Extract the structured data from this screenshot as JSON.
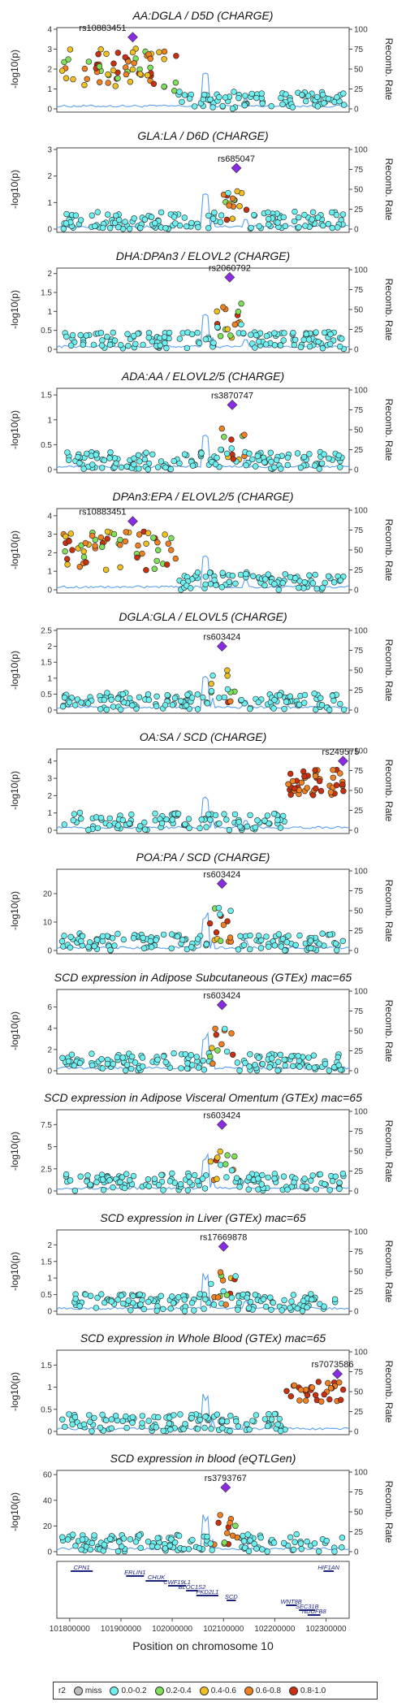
{
  "colors": {
    "miss": "#bdbdbd",
    "r2_0_0.2": "#6ff0f0",
    "r2_0.2_0.4": "#7fe05a",
    "r2_0.4_0.6": "#f0c020",
    "r2_0.6_0.8": "#f08020",
    "r2_0.8_1.0": "#c83010",
    "lead": "#8a2be2",
    "recomb": "#5aa0f0"
  },
  "common": {
    "ylabel": "-log10(p)",
    "y2label": "Recomb. Rate",
    "y2ticks": [
      "0",
      "25",
      "50",
      "75",
      "100"
    ],
    "xlabel": "Position on chromosome 10",
    "xticks": [
      "101800000",
      "101900000",
      "102000000",
      "102100000",
      "102200000",
      "102300000"
    ]
  },
  "legend": {
    "title": "r2",
    "items": [
      {
        "label": "miss",
        "color_key": "miss"
      },
      {
        "label": "0.0-0.2",
        "color_key": "r2_0_0.2"
      },
      {
        "label": "0.2-0.4",
        "color_key": "r2_0.2_0.4"
      },
      {
        "label": "0.4-0.6",
        "color_key": "r2_0.4_0.6"
      },
      {
        "label": "0.6-0.8",
        "color_key": "r2_0.6_0.8"
      },
      {
        "label": "0.8-1.0",
        "color_key": "r2_0.8_1.0"
      }
    ]
  },
  "genes": [
    {
      "name": "CPN1",
      "start": 101802000,
      "end": 101845000,
      "row": 0
    },
    {
      "name": "ERLIN1",
      "start": 101910000,
      "end": 101945000,
      "row": 1
    },
    {
      "name": "CHUK",
      "start": 101948000,
      "end": 101990000,
      "row": 2
    },
    {
      "name": "CWF19L1",
      "start": 101992000,
      "end": 102027000,
      "row": 3
    },
    {
      "name": "BLOC1S2",
      "start": 102027000,
      "end": 102050000,
      "row": 4
    },
    {
      "name": "PKD2L1",
      "start": 102047000,
      "end": 102090000,
      "row": 5
    },
    {
      "name": "SCD",
      "start": 102106000,
      "end": 102124000,
      "row": 6
    },
    {
      "name": "WNT8B",
      "start": 102222000,
      "end": 102242000,
      "row": 7
    },
    {
      "name": "SEC31B",
      "start": 102247000,
      "end": 102279000,
      "row": 8
    },
    {
      "name": "NDUFB8",
      "start": 102264000,
      "end": 102289000,
      "row": 9
    },
    {
      "name": "HIF1AN",
      "start": 102295000,
      "end": 102315000,
      "row": 0
    }
  ],
  "chart_data": [
    {
      "type": "scatter",
      "title": "AA:DGLA / D5D (CHARGE)",
      "ylim": [
        0,
        4
      ],
      "yticks": [
        0,
        1,
        2,
        3,
        4
      ],
      "lead": {
        "snp": "rs10883451",
        "pos": 101923000,
        "logp": 3.6
      },
      "profile": "left_high"
    },
    {
      "type": "scatter",
      "title": "GLA:LA / D6D (CHARGE)",
      "ylim": [
        0,
        3
      ],
      "yticks": [
        0,
        1,
        2,
        3
      ],
      "lead": {
        "snp": "rs685047",
        "pos": 102125000,
        "logp": 2.3
      },
      "profile": "mid_peak"
    },
    {
      "type": "scatter",
      "title": "DHA:DPAn3 / ELOVL2 (CHARGE)",
      "ylim": [
        0,
        2.1
      ],
      "yticks": [
        0,
        0.5,
        1.0,
        1.5,
        2.0
      ],
      "lead": {
        "snp": "rs2060792",
        "pos": 102112000,
        "logp": 1.9
      },
      "profile": "mid_peak"
    },
    {
      "type": "scatter",
      "title": "ADA:AA / ELOVL2/5 (CHARGE)",
      "ylim": [
        0,
        1.6
      ],
      "yticks": [
        0,
        0.5,
        1.0,
        1.5
      ],
      "lead": {
        "snp": "rs3870747",
        "pos": 102117000,
        "logp": 1.3
      },
      "profile": "mid_peak"
    },
    {
      "type": "scatter",
      "title": "DPAn3:EPA / ELOVL2/5 (CHARGE)",
      "ylim": [
        0,
        4.3
      ],
      "yticks": [
        0,
        1,
        2,
        3,
        4
      ],
      "lead": {
        "snp": "rs10883451",
        "pos": 101923000,
        "logp": 3.7
      },
      "profile": "left_high"
    },
    {
      "type": "scatter",
      "title": "DGLA:GLA / ELOVL5 (CHARGE)",
      "ylim": [
        0,
        2.5
      ],
      "yticks": [
        0,
        0.5,
        1.0,
        1.5,
        2.0,
        2.5
      ],
      "lead": {
        "snp": "rs603424",
        "pos": 102097000,
        "logp": 2.0
      },
      "profile": "mid_peak"
    },
    {
      "type": "scatter",
      "title": "OA:SA / SCD (CHARGE)",
      "ylim": [
        0,
        4.6
      ],
      "yticks": [
        0,
        1,
        2,
        3,
        4
      ],
      "lead": {
        "snp": "rs249575",
        "pos": 102333000,
        "logp": 4.0
      },
      "profile": "right_high"
    },
    {
      "type": "scatter",
      "title": "POA:PA / SCD (CHARGE)",
      "ylim": [
        0,
        28
      ],
      "yticks": [
        0,
        10,
        20
      ],
      "lead": {
        "snp": "rs603424",
        "pos": 102097000,
        "logp": 23.5
      },
      "profile": "mid_peak"
    },
    {
      "type": "scatter",
      "title": "SCD expression in Adipose Subcutaneous (GTEx) mac=65",
      "ylim": [
        0,
        7.5
      ],
      "yticks": [
        0,
        2,
        4,
        6
      ],
      "lead": {
        "snp": "rs603424",
        "pos": 102097000,
        "logp": 6.2
      },
      "profile": "mid_peak"
    },
    {
      "type": "scatter",
      "title": "SCD expression in Adipose Visceral Omentum (GTEx) mac=65",
      "ylim": [
        0,
        9
      ],
      "yticks": [
        0,
        2.5,
        5.0,
        7.5
      ],
      "lead": {
        "snp": "rs603424",
        "pos": 102097000,
        "logp": 7.5
      },
      "profile": "mid_peak"
    },
    {
      "type": "scatter",
      "title": "SCD expression in Liver (GTEx) mac=65",
      "ylim": [
        0,
        2.4
      ],
      "yticks": [
        0,
        0.5,
        1.0,
        1.5,
        2.0
      ],
      "lead": {
        "snp": "rs17669878",
        "pos": 102100000,
        "logp": 1.95
      },
      "profile": "mid_peak"
    },
    {
      "type": "scatter",
      "title": "SCD expression in Whole Blood (GTEx) mac=65",
      "ylim": [
        0,
        1.8
      ],
      "yticks": [
        0,
        0.5,
        1.0,
        1.5
      ],
      "lead": {
        "snp": "rs7073586",
        "pos": 102322000,
        "logp": 1.3
      },
      "profile": "right_high"
    },
    {
      "type": "scatter",
      "title": "SCD expression in blood (eQTLGen)",
      "ylim": [
        0,
        62
      ],
      "yticks": [
        0,
        20,
        40,
        60
      ],
      "lead": {
        "snp": "rs3793767",
        "pos": 102104000,
        "logp": 50
      },
      "profile": "mid_peak"
    }
  ]
}
